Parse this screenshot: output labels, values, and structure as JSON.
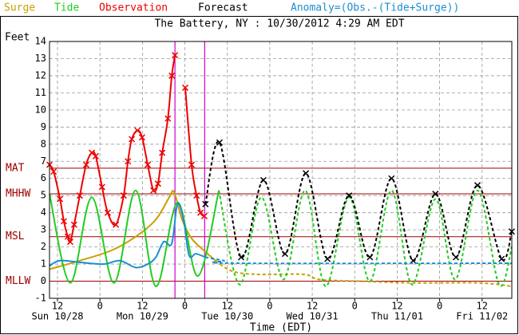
{
  "chart_data": {
    "type": "line",
    "title": "The Battery, NY : 10/30/2012 4:29 AM EDT",
    "ylabel": "Feet",
    "xlabel": "Time (EDT)",
    "xlim": [
      9.74,
      140.4
    ],
    "ylim": [
      -1,
      14
    ],
    "yticks": [
      -1,
      0,
      1,
      2,
      3,
      4,
      5,
      6,
      7,
      8,
      9,
      10,
      11,
      12,
      13,
      14
    ],
    "xticks": [
      {
        "value": 12,
        "label": "12"
      },
      {
        "value": 24,
        "label": "0"
      },
      {
        "value": 36,
        "label": "12"
      },
      {
        "value": 48,
        "label": "0"
      },
      {
        "value": 60,
        "label": "12"
      },
      {
        "value": 72,
        "label": "0"
      },
      {
        "value": 84,
        "label": "12"
      },
      {
        "value": 96,
        "label": "0"
      },
      {
        "value": 108,
        "label": "12"
      },
      {
        "value": 120,
        "label": "0"
      },
      {
        "value": 132,
        "label": "12"
      }
    ],
    "date_labels": [
      {
        "value": 12,
        "label": "Sun 10/28"
      },
      {
        "value": 36,
        "label": "Mon 10/29"
      },
      {
        "value": 60,
        "label": "Tue 10/30"
      },
      {
        "value": 84,
        "label": "Wed 10/31"
      },
      {
        "value": 108,
        "label": "Thu 11/01"
      },
      {
        "value": 132,
        "label": "Fri 11/02"
      }
    ],
    "grid": true,
    "datums": [
      {
        "label": "MAT",
        "value": 6.6
      },
      {
        "label": "MHHW",
        "value": 5.1
      },
      {
        "label": "MSL",
        "value": 2.6
      },
      {
        "label": "MLLW",
        "value": 0
      }
    ],
    "datum_color": "#a00000",
    "now_lines": [
      45.2,
      53.6
    ],
    "now_color": "#cc00cc",
    "series": [
      {
        "name": "Surge",
        "color": "#c8a000",
        "dashed": false,
        "markers": false,
        "x": [
          9.74,
          18.3,
          27.3,
          34.1,
          39.8,
          43.6,
          44.96,
          47.2,
          49.9,
          53.3,
          56.7,
          61.2,
          68.0,
          81.5,
          86.0,
          97.3,
          113.1,
          131.2,
          140.4
        ],
        "values": [
          0.7,
          1.2,
          1.8,
          2.6,
          3.6,
          4.9,
          5.2,
          3.6,
          2.5,
          1.8,
          1.2,
          0.6,
          0.4,
          0.4,
          0.1,
          0.0,
          -0.1,
          -0.1,
          -0.3
        ]
      },
      {
        "name": "Tide",
        "color": "#22cc22",
        "dashed": false,
        "markers": false,
        "x": [
          9.74,
          15.6,
          21.7,
          28.0,
          34.1,
          39.8,
          45.9,
          51.7,
          57.6,
          63.5,
          69.6,
          75.9,
          82.0,
          87.8,
          94.4,
          100.3,
          106.4,
          112.2,
          118.8,
          124.4,
          130.7,
          136.8,
          140.4
        ],
        "values": [
          5.1,
          -0.1,
          4.9,
          -0.1,
          5.3,
          -0.3,
          4.6,
          0.3,
          5.3,
          -0.2,
          4.9,
          0.1,
          5.3,
          -0.3,
          4.9,
          0.0,
          5.3,
          -0.2,
          4.8,
          0.1,
          5.3,
          -0.2,
          2.0
        ]
      },
      {
        "name": "Observation",
        "color": "#ee0000",
        "dashed": false,
        "markers": true,
        "x": [
          9.74,
          10.9,
          12.7,
          13.8,
          14.9,
          15.6,
          16.7,
          18.3,
          20.1,
          21.7,
          22.8,
          24.6,
          26.2,
          28.5,
          30.7,
          31.9,
          33.0,
          34.6,
          35.9,
          37.5,
          39.1,
          40.4,
          41.6,
          43.2,
          44.3,
          45.2,
          46.6,
          48.1,
          49.9,
          51.3,
          52.4,
          53.5
        ],
        "values": [
          6.8,
          6.4,
          4.8,
          3.5,
          2.6,
          2.3,
          3.3,
          5.0,
          6.8,
          7.5,
          7.3,
          5.5,
          4.0,
          3.3,
          5.0,
          7.0,
          8.3,
          8.8,
          8.4,
          6.8,
          5.3,
          5.7,
          7.5,
          9.5,
          12.0,
          13.2,
          null,
          11.3,
          6.8,
          5.0,
          4.0,
          3.8
        ]
      },
      {
        "name": "Forecast",
        "color": "#000000",
        "dashed": true,
        "markers": true,
        "x": [
          53.8,
          57.8,
          63.9,
          70.2,
          76.3,
          82.2,
          88.3,
          94.4,
          100.3,
          106.4,
          112.5,
          118.8,
          124.6,
          130.7,
          137.5,
          140.4
        ],
        "values": [
          4.5,
          8.1,
          1.4,
          5.9,
          1.6,
          6.3,
          1.3,
          5.0,
          1.4,
          6.0,
          1.2,
          5.1,
          1.4,
          5.6,
          1.3,
          2.9
        ]
      },
      {
        "name": "Anomaly=(Obs.-(Tide+Surge))",
        "color": "#1a8fd0",
        "dashed": false,
        "markers": false,
        "x": [
          9.74,
          12.7,
          18.3,
          25.1,
          29.6,
          34.1,
          37.5,
          39.8,
          42.0,
          44.3,
          45.9,
          47.7,
          49.2,
          51.1,
          53.8,
          59.0,
          62.3,
          140.4
        ],
        "values": [
          0.9,
          1.2,
          1.1,
          1.0,
          1.2,
          0.8,
          1.0,
          1.4,
          2.3,
          2.2,
          4.5,
          3.5,
          1.5,
          1.6,
          1.4,
          1.2,
          1.05,
          1.05
        ]
      }
    ]
  }
}
